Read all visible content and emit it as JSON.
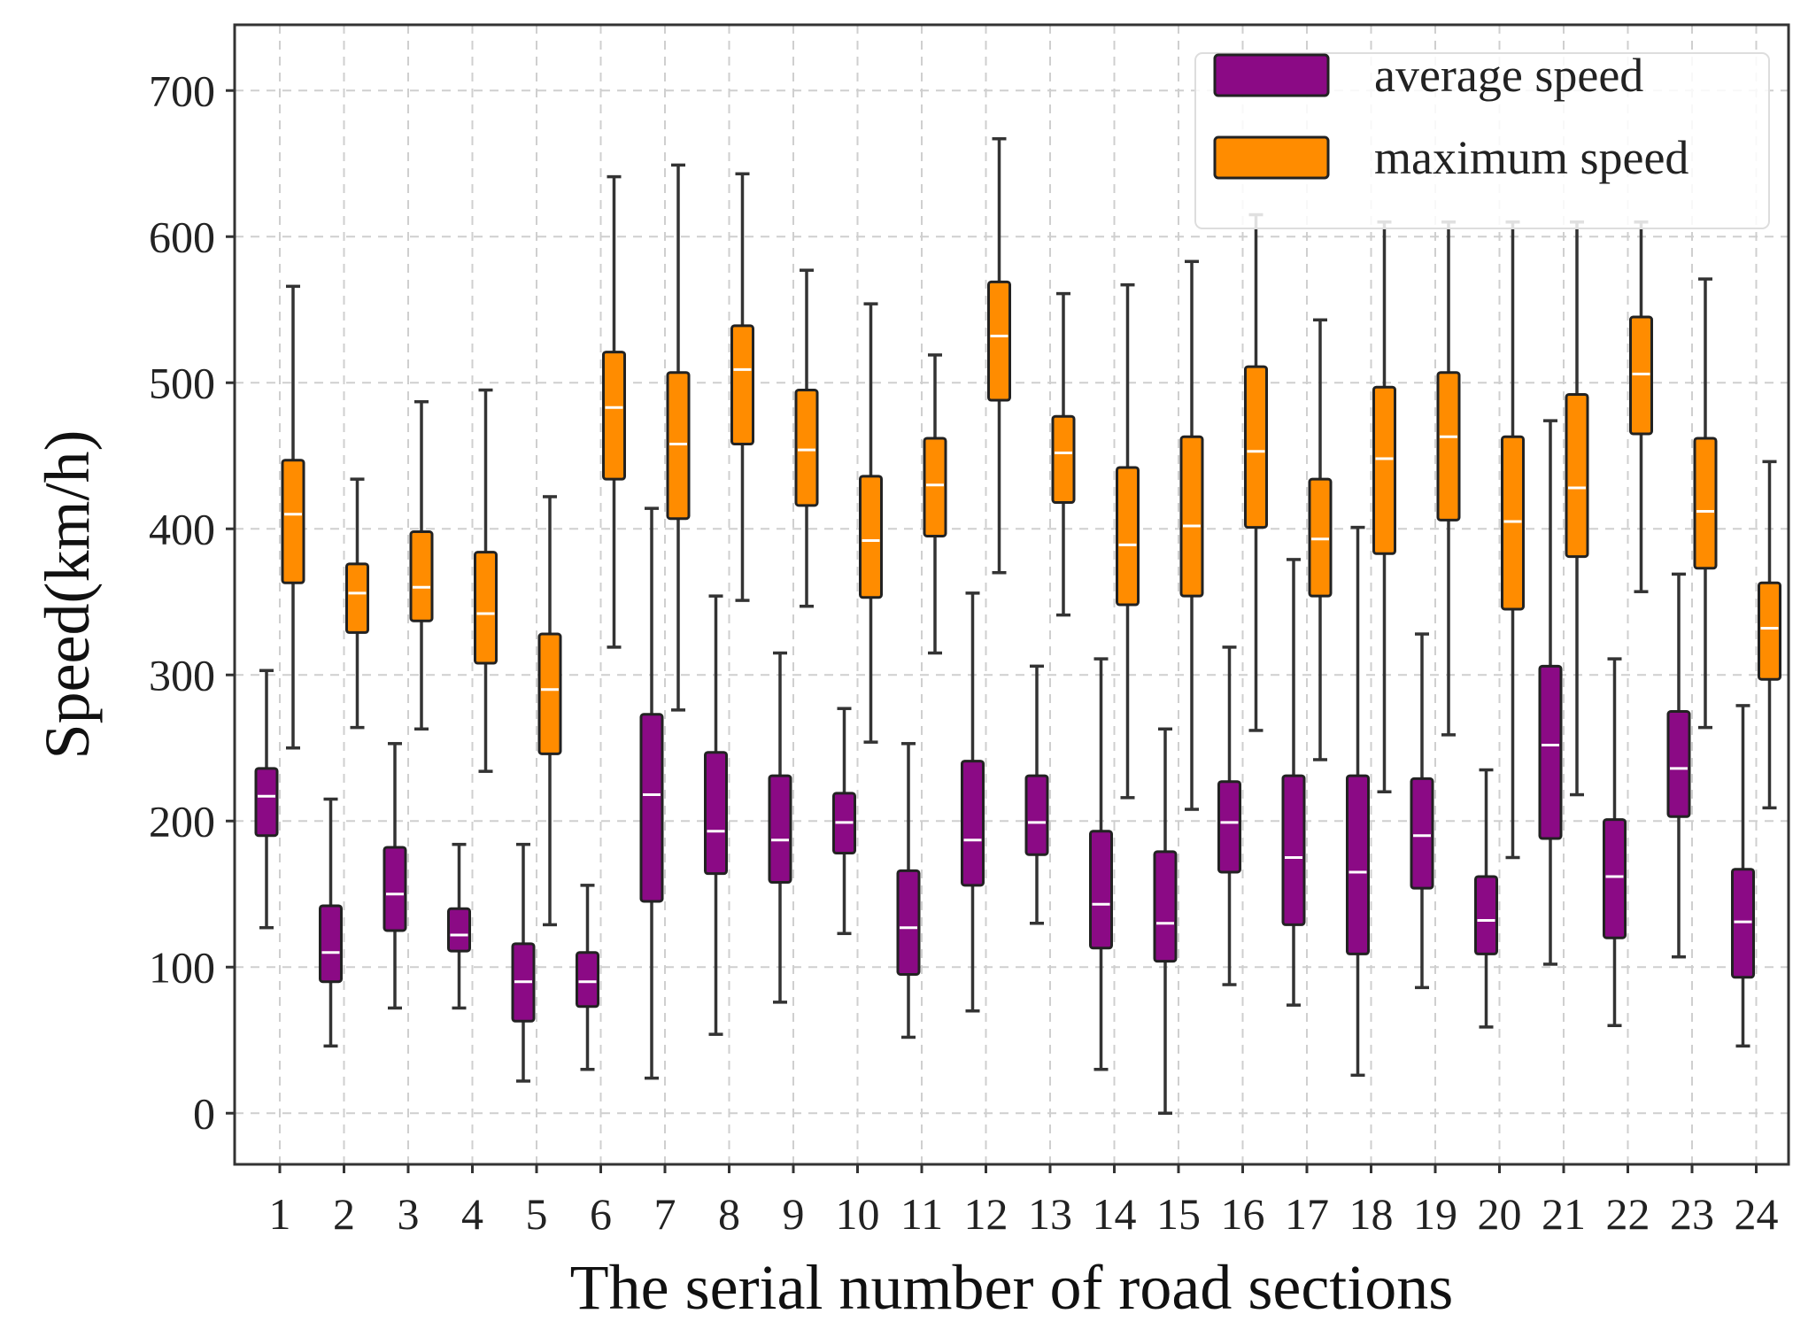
{
  "chart_data": {
    "type": "boxplot",
    "title": "",
    "xlabel": "The serial number of road sections",
    "ylabel": "Speed(km/h)",
    "ylim": [
      -35,
      745
    ],
    "yticks": [
      0,
      100,
      200,
      300,
      400,
      500,
      600,
      700
    ],
    "categories": [
      "1",
      "2",
      "3",
      "4",
      "5",
      "6",
      "7",
      "8",
      "9",
      "10",
      "11",
      "12",
      "13",
      "14",
      "15",
      "16",
      "17",
      "18",
      "19",
      "20",
      "21",
      "22",
      "23",
      "24"
    ],
    "grid": true,
    "legend_position": "top-right",
    "colors": {
      "average": "#8B0A85",
      "maximum": "#FF8C00"
    },
    "series": [
      {
        "name": "average speed",
        "boxes": [
          {
            "min": 127,
            "q1": 190,
            "median": 217,
            "q3": 236,
            "max": 303
          },
          {
            "min": 46,
            "q1": 90,
            "median": 110,
            "q3": 142,
            "max": 215
          },
          {
            "min": 72,
            "q1": 125,
            "median": 150,
            "q3": 182,
            "max": 253
          },
          {
            "min": 72,
            "q1": 111,
            "median": 122,
            "q3": 140,
            "max": 184
          },
          {
            "min": 22,
            "q1": 63,
            "median": 90,
            "q3": 116,
            "max": 184
          },
          {
            "min": 30,
            "q1": 73,
            "median": 90,
            "q3": 110,
            "max": 156
          },
          {
            "min": 24,
            "q1": 145,
            "median": 218,
            "q3": 273,
            "max": 414
          },
          {
            "min": 54,
            "q1": 164,
            "median": 193,
            "q3": 247,
            "max": 354
          },
          {
            "min": 76,
            "q1": 158,
            "median": 187,
            "q3": 231,
            "max": 315
          },
          {
            "min": 123,
            "q1": 178,
            "median": 199,
            "q3": 219,
            "max": 277
          },
          {
            "min": 52,
            "q1": 95,
            "median": 127,
            "q3": 166,
            "max": 253
          },
          {
            "min": 70,
            "q1": 156,
            "median": 187,
            "q3": 241,
            "max": 356
          },
          {
            "min": 130,
            "q1": 177,
            "median": 199,
            "q3": 231,
            "max": 306
          },
          {
            "min": 30,
            "q1": 113,
            "median": 143,
            "q3": 193,
            "max": 311
          },
          {
            "min": 0,
            "q1": 104,
            "median": 130,
            "q3": 179,
            "max": 263
          },
          {
            "min": 88,
            "q1": 165,
            "median": 199,
            "q3": 227,
            "max": 319
          },
          {
            "min": 74,
            "q1": 129,
            "median": 175,
            "q3": 231,
            "max": 379
          },
          {
            "min": 26,
            "q1": 109,
            "median": 165,
            "q3": 231,
            "max": 401
          },
          {
            "min": 86,
            "q1": 154,
            "median": 190,
            "q3": 229,
            "max": 328
          },
          {
            "min": 59,
            "q1": 109,
            "median": 132,
            "q3": 162,
            "max": 235
          },
          {
            "min": 102,
            "q1": 188,
            "median": 252,
            "q3": 306,
            "max": 474
          },
          {
            "min": 60,
            "q1": 120,
            "median": 162,
            "q3": 201,
            "max": 311
          },
          {
            "min": 107,
            "q1": 203,
            "median": 236,
            "q3": 275,
            "max": 369
          },
          {
            "min": 46,
            "q1": 93,
            "median": 131,
            "q3": 167,
            "max": 279
          }
        ]
      },
      {
        "name": "maximum speed",
        "boxes": [
          {
            "min": 250,
            "q1": 363,
            "median": 410,
            "q3": 447,
            "max": 566
          },
          {
            "min": 264,
            "q1": 329,
            "median": 356,
            "q3": 376,
            "max": 434
          },
          {
            "min": 263,
            "q1": 337,
            "median": 360,
            "q3": 398,
            "max": 487
          },
          {
            "min": 234,
            "q1": 308,
            "median": 342,
            "q3": 384,
            "max": 495
          },
          {
            "min": 129,
            "q1": 246,
            "median": 290,
            "q3": 328,
            "max": 422
          },
          {
            "min": 319,
            "q1": 434,
            "median": 483,
            "q3": 521,
            "max": 641
          },
          {
            "min": 276,
            "q1": 407,
            "median": 458,
            "q3": 507,
            "max": 649
          },
          {
            "min": 351,
            "q1": 458,
            "median": 509,
            "q3": 539,
            "max": 643
          },
          {
            "min": 347,
            "q1": 416,
            "median": 454,
            "q3": 495,
            "max": 577
          },
          {
            "min": 254,
            "q1": 353,
            "median": 392,
            "q3": 436,
            "max": 554
          },
          {
            "min": 315,
            "q1": 395,
            "median": 430,
            "q3": 462,
            "max": 519
          },
          {
            "min": 370,
            "q1": 488,
            "median": 532,
            "q3": 569,
            "max": 667
          },
          {
            "min": 341,
            "q1": 418,
            "median": 452,
            "q3": 477,
            "max": 561
          },
          {
            "min": 216,
            "q1": 348,
            "median": 389,
            "q3": 442,
            "max": 567
          },
          {
            "min": 208,
            "q1": 354,
            "median": 402,
            "q3": 463,
            "max": 583
          },
          {
            "min": 262,
            "q1": 401,
            "median": 453,
            "q3": 511,
            "max": 615
          },
          {
            "min": 242,
            "q1": 354,
            "median": 393,
            "q3": 434,
            "max": 543
          },
          {
            "min": 220,
            "q1": 383,
            "median": 448,
            "q3": 497,
            "max": 610
          },
          {
            "min": 259,
            "q1": 406,
            "median": 463,
            "q3": 507,
            "max": 610
          },
          {
            "min": 175,
            "q1": 345,
            "median": 405,
            "q3": 463,
            "max": 610
          },
          {
            "min": 218,
            "q1": 381,
            "median": 428,
            "q3": 492,
            "max": 610
          },
          {
            "min": 357,
            "q1": 465,
            "median": 506,
            "q3": 545,
            "max": 610
          },
          {
            "min": 264,
            "q1": 373,
            "median": 412,
            "q3": 462,
            "max": 571
          },
          {
            "min": 209,
            "q1": 297,
            "median": 332,
            "q3": 363,
            "max": 446
          }
        ]
      }
    ]
  }
}
